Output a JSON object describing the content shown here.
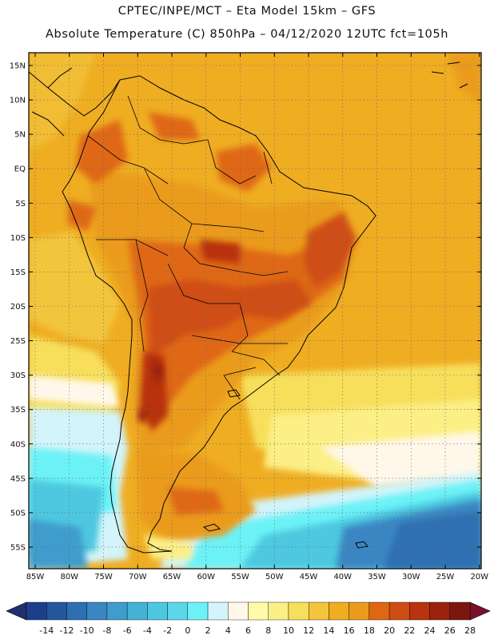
{
  "header": {
    "line1": "CPTEC/INPE/MCT –  Eta Model 15km – GFS",
    "line2": "Absolute Temperature (C) 850hPa – 04/12/2020 12UTC fct=105h"
  },
  "map": {
    "lat_labels": [
      "15N",
      "10N",
      "5N",
      "EQ",
      "5S",
      "10S",
      "15S",
      "20S",
      "25S",
      "30S",
      "35S",
      "40S",
      "45S",
      "50S",
      "55S"
    ],
    "lon_labels": [
      "85W",
      "80W",
      "75W",
      "70W",
      "65W",
      "60W",
      "55W",
      "50W",
      "45W",
      "40W",
      "35W",
      "30W",
      "25W",
      "20W"
    ],
    "gridlines": "dotted"
  },
  "colorbar": {
    "labels": [
      "-14",
      "-12",
      "-10",
      "-8",
      "-6",
      "-4",
      "-2",
      "0",
      "2",
      "4",
      "6",
      "8",
      "10",
      "12",
      "14",
      "16",
      "18",
      "20",
      "22",
      "24",
      "26",
      "28"
    ],
    "colors": [
      "#1d3e8c",
      "#25569e",
      "#2d6fb2",
      "#3a86c2",
      "#3f9ccc",
      "#43b2d6",
      "#4ec8e0",
      "#5ad8ea",
      "#6cf2f6",
      "#d2f4fa",
      "#fff8ea",
      "#fffba8",
      "#fcef86",
      "#f7df5c",
      "#f2c53d",
      "#efad22",
      "#ea9b1d",
      "#de6714",
      "#cf4d12",
      "#b8330f",
      "#9a220e",
      "#7c1710"
    ],
    "under_color": "#20306e",
    "over_color": "#7a0f2a"
  }
}
